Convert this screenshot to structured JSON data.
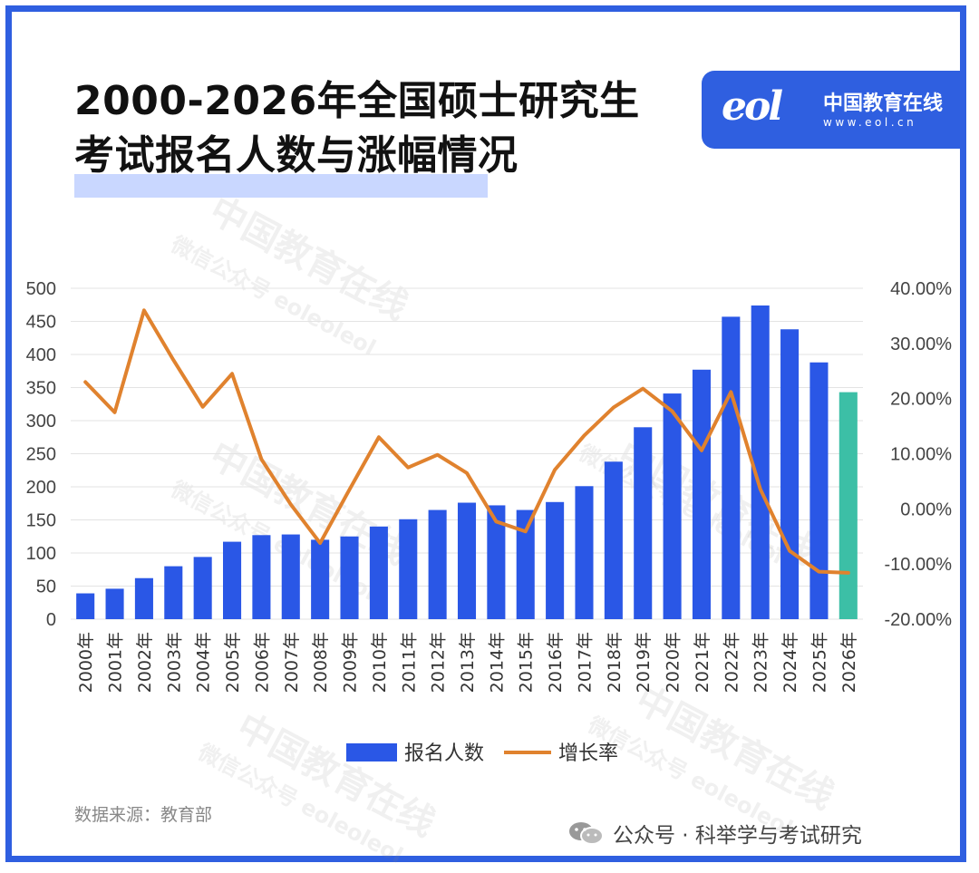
{
  "title_line1": "2000-2026年全国硕士研究生",
  "title_line2": "考试报名人数与涨幅情况",
  "logo": {
    "mark": "eol",
    "name": "中国教育在线",
    "url": "www.eol.cn"
  },
  "watermark": {
    "line1": "中国教育在线",
    "line2": "微信公众号 eoleoleol"
  },
  "source_text": "数据来源：教育部",
  "footer_text": "公众号 · 科举学与考试研究",
  "colors": {
    "frame": "#2f5fe0",
    "bar": "#2a57e6",
    "bar_highlight": "#3cbfa6",
    "line": "#e0822e"
  },
  "chart_data": {
    "type": "bar",
    "categories": [
      "2000年",
      "2001年",
      "2002年",
      "2003年",
      "2004年",
      "2005年",
      "2006年",
      "2007年",
      "2008年",
      "2009年",
      "2010年",
      "2011年",
      "2012年",
      "2013年",
      "2014年",
      "2015年",
      "2016年",
      "2017年",
      "2018年",
      "2019年",
      "2020年",
      "2021年",
      "2022年",
      "2023年",
      "2024年",
      "2025年",
      "2026年"
    ],
    "series": [
      {
        "name": "报名人数",
        "type": "bar",
        "axis": "left",
        "values": [
          39,
          46,
          62,
          80,
          94,
          117,
          127,
          128,
          120,
          125,
          140,
          151,
          165,
          176,
          172,
          165,
          177,
          201,
          238,
          290,
          341,
          377,
          457,
          474,
          438,
          388,
          343
        ]
      },
      {
        "name": "增长率",
        "type": "line",
        "axis": "right",
        "values": [
          23.0,
          17.5,
          36.0,
          27.0,
          18.5,
          24.5,
          9.0,
          0.8,
          -6.2,
          3.5,
          13.0,
          7.5,
          9.8,
          6.5,
          -2.3,
          -4.1,
          7.1,
          13.3,
          18.4,
          21.8,
          17.7,
          10.6,
          21.2,
          3.6,
          -7.6,
          -11.4,
          -11.6
        ]
      }
    ],
    "ylim": [
      0,
      500
    ],
    "y_ticks": [
      500,
      450,
      400,
      350,
      300,
      250,
      200,
      150,
      100,
      50,
      0
    ],
    "y2lim": [
      -20,
      40
    ],
    "y2_ticks": [
      "40.00%",
      "30.00%",
      "20.00%",
      "10.00%",
      "0.00%",
      "-10.00%",
      "-20.00%"
    ],
    "xlabel": "",
    "ylabel": "",
    "grid": true,
    "legend": "bottom-center",
    "highlight_last_bar": true
  }
}
